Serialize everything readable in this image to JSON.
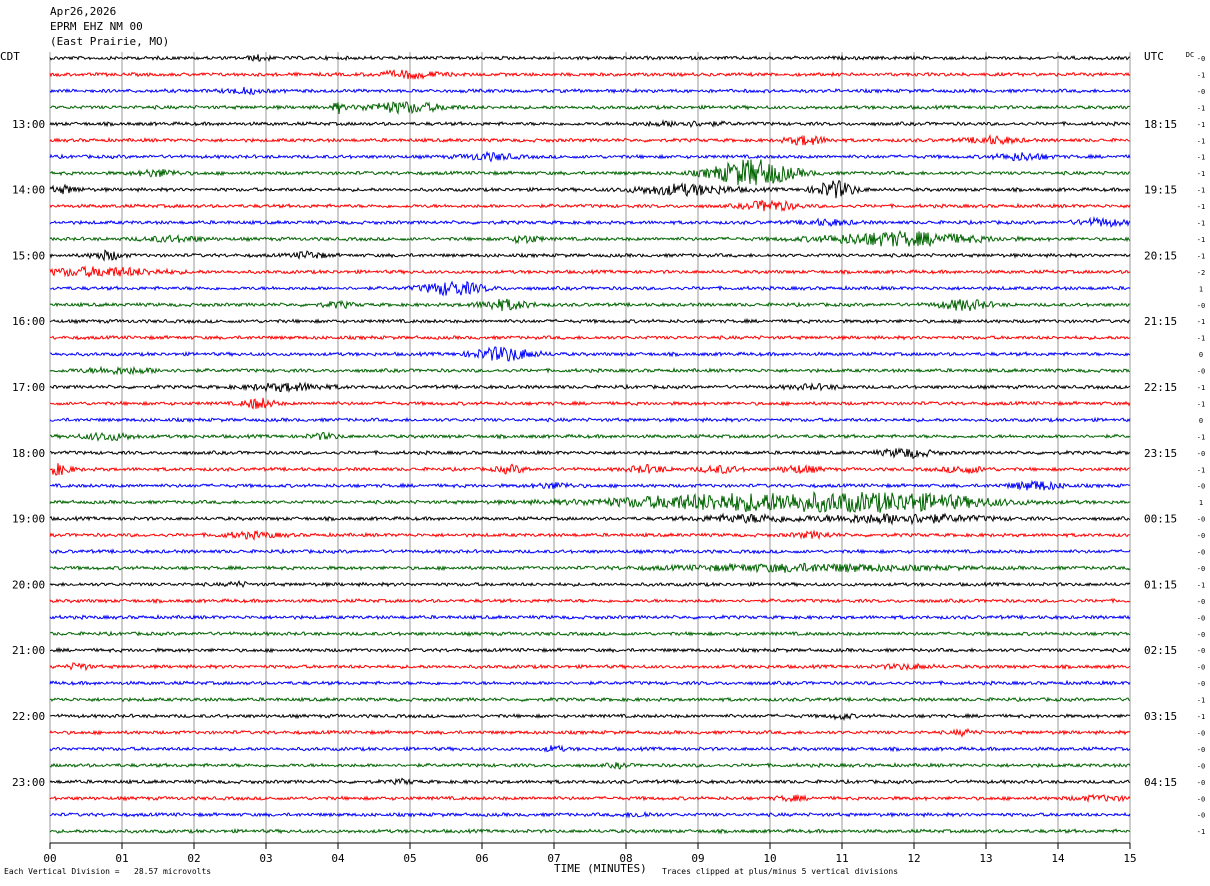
{
  "header": {
    "date": "Apr26,2026",
    "station": "EPRM EHZ NM 00",
    "location": "(East Prairie, MO)"
  },
  "left_tz": "CDT",
  "right_tz": "UTC",
  "dc_label": "DC",
  "footer": {
    "scale": "Each Vertical Division =   28.57 microvolts",
    "clip": "Traces clipped at plus/minus 5 vertical divisions"
  },
  "colors": {
    "trace_cycle": [
      "#000000",
      "#ff0000",
      "#0000ff",
      "#006400"
    ],
    "grid": "#808080"
  },
  "chart_data": {
    "type": "line",
    "title": "",
    "xlabel": "TIME (MINUTES)",
    "ylabel": "",
    "xlim": [
      0,
      15
    ],
    "x_ticks": [
      "00",
      "01",
      "02",
      "03",
      "04",
      "05",
      "06",
      "07",
      "08",
      "09",
      "10",
      "11",
      "12",
      "13",
      "14",
      "15"
    ],
    "trace_count": 48,
    "left_hour_labels": [
      {
        "trace": 4,
        "label": "13:00"
      },
      {
        "trace": 8,
        "label": "14:00"
      },
      {
        "trace": 12,
        "label": "15:00"
      },
      {
        "trace": 16,
        "label": "16:00"
      },
      {
        "trace": 20,
        "label": "17:00"
      },
      {
        "trace": 24,
        "label": "18:00"
      },
      {
        "trace": 28,
        "label": "19:00"
      },
      {
        "trace": 32,
        "label": "20:00"
      },
      {
        "trace": 36,
        "label": "21:00"
      },
      {
        "trace": 40,
        "label": "22:00"
      },
      {
        "trace": 44,
        "label": "23:00"
      }
    ],
    "right_hour_labels": [
      {
        "trace": 4,
        "label": "18:15"
      },
      {
        "trace": 8,
        "label": "19:15"
      },
      {
        "trace": 12,
        "label": "20:15"
      },
      {
        "trace": 16,
        "label": "21:15"
      },
      {
        "trace": 20,
        "label": "22:15"
      },
      {
        "trace": 24,
        "label": "23:15"
      },
      {
        "trace": 28,
        "label": "00:15"
      },
      {
        "trace": 32,
        "label": "01:15"
      },
      {
        "trace": 36,
        "label": "02:15"
      },
      {
        "trace": 40,
        "label": "03:15"
      },
      {
        "trace": 44,
        "label": "04:15"
      }
    ],
    "dc_offsets": [
      "-0",
      "-1",
      "-0",
      "-1",
      "-1",
      "-1",
      "-1",
      "-1",
      "-1",
      "-1",
      "-1",
      "-1",
      "-1",
      "-2",
      "1",
      "-0",
      "-1",
      "-1",
      "0",
      "-0",
      "-1",
      "-1",
      "0",
      "-1",
      "-0",
      "-1",
      "-0",
      "1",
      "-0",
      "-0",
      "-0",
      "-0",
      "-1",
      "-0",
      "-0",
      "-0",
      "-0",
      "-0",
      "-0",
      "-1",
      "-1",
      "-0",
      "-0",
      "-0",
      "-0",
      "-0",
      "-0",
      "-1"
    ],
    "events": [
      {
        "trace": 0,
        "minute": 2.9,
        "amplitude": 1.5,
        "width": 0.2
      },
      {
        "trace": 1,
        "minute": 5.0,
        "amplitude": 2,
        "width": 0.6
      },
      {
        "trace": 2,
        "minute": 2.7,
        "amplitude": 1.5,
        "width": 0.4
      },
      {
        "trace": 3,
        "minute": 4.0,
        "amplitude": 3,
        "width": 0.1
      },
      {
        "trace": 3,
        "minute": 4.9,
        "amplitude": 3,
        "width": 0.8
      },
      {
        "trace": 4,
        "minute": 8.8,
        "amplitude": 1.2,
        "width": 0.8
      },
      {
        "trace": 5,
        "minute": 10.5,
        "amplitude": 2.5,
        "width": 0.4
      },
      {
        "trace": 5,
        "minute": 13.1,
        "amplitude": 2,
        "width": 0.5
      },
      {
        "trace": 6,
        "minute": 6.1,
        "amplitude": 2,
        "width": 0.5
      },
      {
        "trace": 6,
        "minute": 13.5,
        "amplitude": 2,
        "width": 0.5
      },
      {
        "trace": 7,
        "minute": 9.75,
        "amplitude": 8,
        "width": 0.8
      },
      {
        "trace": 7,
        "minute": 1.5,
        "amplitude": 2,
        "width": 0.4
      },
      {
        "trace": 8,
        "minute": 8.8,
        "amplitude": 3,
        "width": 1.0
      },
      {
        "trace": 8,
        "minute": 10.9,
        "amplitude": 5,
        "width": 0.4
      },
      {
        "trace": 8,
        "minute": 0.2,
        "amplitude": 2,
        "width": 0.3
      },
      {
        "trace": 9,
        "minute": 10.0,
        "amplitude": 3,
        "width": 0.5
      },
      {
        "trace": 10,
        "minute": 14.6,
        "amplitude": 2,
        "width": 0.5
      },
      {
        "trace": 10,
        "minute": 10.8,
        "amplitude": 1.5,
        "width": 0.5
      },
      {
        "trace": 11,
        "minute": 11.8,
        "amplitude": 4,
        "width": 1.5
      },
      {
        "trace": 11,
        "minute": 6.6,
        "amplitude": 2,
        "width": 0.3
      },
      {
        "trace": 11,
        "minute": 1.7,
        "amplitude": 1.5,
        "width": 0.6
      },
      {
        "trace": 12,
        "minute": 0.8,
        "amplitude": 2.5,
        "width": 0.3
      },
      {
        "trace": 12,
        "minute": 3.6,
        "amplitude": 2,
        "width": 0.3
      },
      {
        "trace": 13,
        "minute": 0.7,
        "amplitude": 2.5,
        "width": 1.2
      },
      {
        "trace": 14,
        "minute": 5.6,
        "amplitude": 4,
        "width": 0.6
      },
      {
        "trace": 15,
        "minute": 6.3,
        "amplitude": 3,
        "width": 0.5
      },
      {
        "trace": 15,
        "minute": 12.7,
        "amplitude": 3,
        "width": 0.5
      },
      {
        "trace": 15,
        "minute": 4.0,
        "amplitude": 1.5,
        "width": 0.3
      },
      {
        "trace": 18,
        "minute": 6.3,
        "amplitude": 4,
        "width": 0.6
      },
      {
        "trace": 19,
        "minute": 1.0,
        "amplitude": 1.5,
        "width": 0.8
      },
      {
        "trace": 20,
        "minute": 3.3,
        "amplitude": 2,
        "width": 0.8
      },
      {
        "trace": 20,
        "minute": 10.6,
        "amplitude": 1.2,
        "width": 0.5
      },
      {
        "trace": 21,
        "minute": 2.9,
        "amplitude": 3,
        "width": 0.3
      },
      {
        "trace": 23,
        "minute": 0.8,
        "amplitude": 2,
        "width": 0.5
      },
      {
        "trace": 23,
        "minute": 3.8,
        "amplitude": 1.5,
        "width": 0.3
      },
      {
        "trace": 24,
        "minute": 11.9,
        "amplitude": 2.5,
        "width": 0.5
      },
      {
        "trace": 25,
        "minute": 0.1,
        "amplitude": 3,
        "width": 0.3
      },
      {
        "trace": 25,
        "minute": 6.4,
        "amplitude": 2,
        "width": 0.3
      },
      {
        "trace": 25,
        "minute": 8.3,
        "amplitude": 2,
        "width": 0.4
      },
      {
        "trace": 25,
        "minute": 9.3,
        "amplitude": 2,
        "width": 0.4
      },
      {
        "trace": 25,
        "minute": 10.4,
        "amplitude": 2,
        "width": 0.4
      },
      {
        "trace": 25,
        "minute": 12.7,
        "amplitude": 2,
        "width": 0.4
      },
      {
        "trace": 26,
        "minute": 13.7,
        "amplitude": 2.5,
        "width": 0.5
      },
      {
        "trace": 26,
        "minute": 7.0,
        "amplitude": 1.5,
        "width": 0.4
      },
      {
        "trace": 27,
        "minute": 9.7,
        "amplitude": 5,
        "width": 2.8
      },
      {
        "trace": 27,
        "minute": 11.9,
        "amplitude": 4,
        "width": 1.8
      },
      {
        "trace": 28,
        "minute": 11.8,
        "amplitude": 2.5,
        "width": 1.6
      },
      {
        "trace": 28,
        "minute": 9.7,
        "amplitude": 2,
        "width": 1.0
      },
      {
        "trace": 29,
        "minute": 2.8,
        "amplitude": 1.5,
        "width": 0.6
      },
      {
        "trace": 29,
        "minute": 10.6,
        "amplitude": 1.5,
        "width": 0.4
      },
      {
        "trace": 31,
        "minute": 10.5,
        "amplitude": 2,
        "width": 2.5
      },
      {
        "trace": 32,
        "minute": 2.6,
        "amplitude": 1.2,
        "width": 0.2
      },
      {
        "trace": 37,
        "minute": 0.4,
        "amplitude": 2,
        "width": 0.2
      },
      {
        "trace": 37,
        "minute": 11.9,
        "amplitude": 1.2,
        "width": 0.5
      },
      {
        "trace": 40,
        "minute": 11.0,
        "amplitude": 1.5,
        "width": 0.2
      },
      {
        "trace": 41,
        "minute": 12.7,
        "amplitude": 1.5,
        "width": 0.2
      },
      {
        "trace": 42,
        "minute": 7.0,
        "amplitude": 1.5,
        "width": 0.2
      },
      {
        "trace": 43,
        "minute": 7.9,
        "amplitude": 1.2,
        "width": 0.2
      },
      {
        "trace": 44,
        "minute": 4.9,
        "amplitude": 1.2,
        "width": 0.2
      },
      {
        "trace": 45,
        "minute": 10.3,
        "amplitude": 1.2,
        "width": 0.3
      },
      {
        "trace": 45,
        "minute": 14.6,
        "amplitude": 1.2,
        "width": 0.6
      },
      {
        "trace": 46,
        "minute": 8.2,
        "amplitude": 1.2,
        "width": 0.3
      }
    ]
  }
}
